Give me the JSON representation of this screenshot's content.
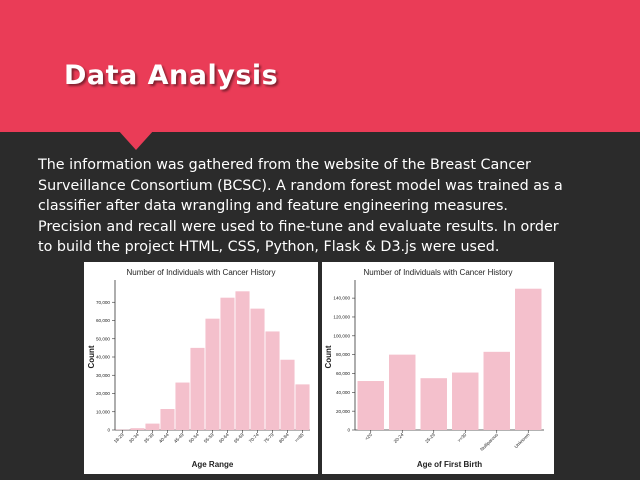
{
  "slide": {
    "title": "Data Analysis",
    "body_lines": [
      "The information was gathered from the website of the Breast Cancer",
      "Surveillance Consortium (BCSC). A random forest model was trained as a",
      "classifier after data wrangling and feature engineering measures.",
      "Precision and recall were used to fine-tune and evaluate results. In order",
      "to build the project HTML, CSS, Python, Flask & D3.js were used."
    ],
    "colors": {
      "banner": "#ea3c57",
      "background": "#2b2b2b",
      "bar": "#f4c0cc"
    }
  },
  "chart_data": [
    {
      "type": "bar",
      "title": "Number of Individuals with Cancer History",
      "xlabel": "Age Range",
      "ylabel": "Count",
      "categories": [
        "18-29",
        "30-34",
        "35-39",
        "40-44",
        "45-49",
        "50-54",
        "55-59",
        "60-64",
        "65-69",
        "70-74",
        "75-79",
        "80-84",
        ">=85"
      ],
      "values": [
        200,
        1000,
        3500,
        11500,
        26000,
        45000,
        61000,
        72500,
        76000,
        66500,
        54000,
        38500,
        25000
      ],
      "ylim": [
        0,
        80000
      ],
      "yticks": [
        "0",
        "10,000",
        "20,000",
        "30,000",
        "40,000",
        "50,000",
        "60,000",
        "70,000"
      ],
      "ytick_values": [
        0,
        10000,
        20000,
        30000,
        40000,
        50000,
        60000,
        70000
      ],
      "grid": false,
      "color": "#f4c0cc"
    },
    {
      "type": "bar",
      "title": "Number of Individuals with Cancer History",
      "xlabel": "Age of First Birth",
      "ylabel": "Count",
      "categories": [
        "<20",
        "20-24",
        "25-29",
        ">=30",
        "Nulliparous",
        "Unknown"
      ],
      "values": [
        52000,
        80000,
        55000,
        61000,
        83000,
        150000
      ],
      "ylim": [
        0,
        155000
      ],
      "yticks": [
        "0",
        "20,000",
        "40,000",
        "60,000",
        "80,000",
        "100,000",
        "120,000",
        "140,000"
      ],
      "ytick_values": [
        0,
        20000,
        40000,
        60000,
        80000,
        100000,
        120000,
        140000
      ],
      "grid": false,
      "color": "#f4c0cc"
    }
  ]
}
